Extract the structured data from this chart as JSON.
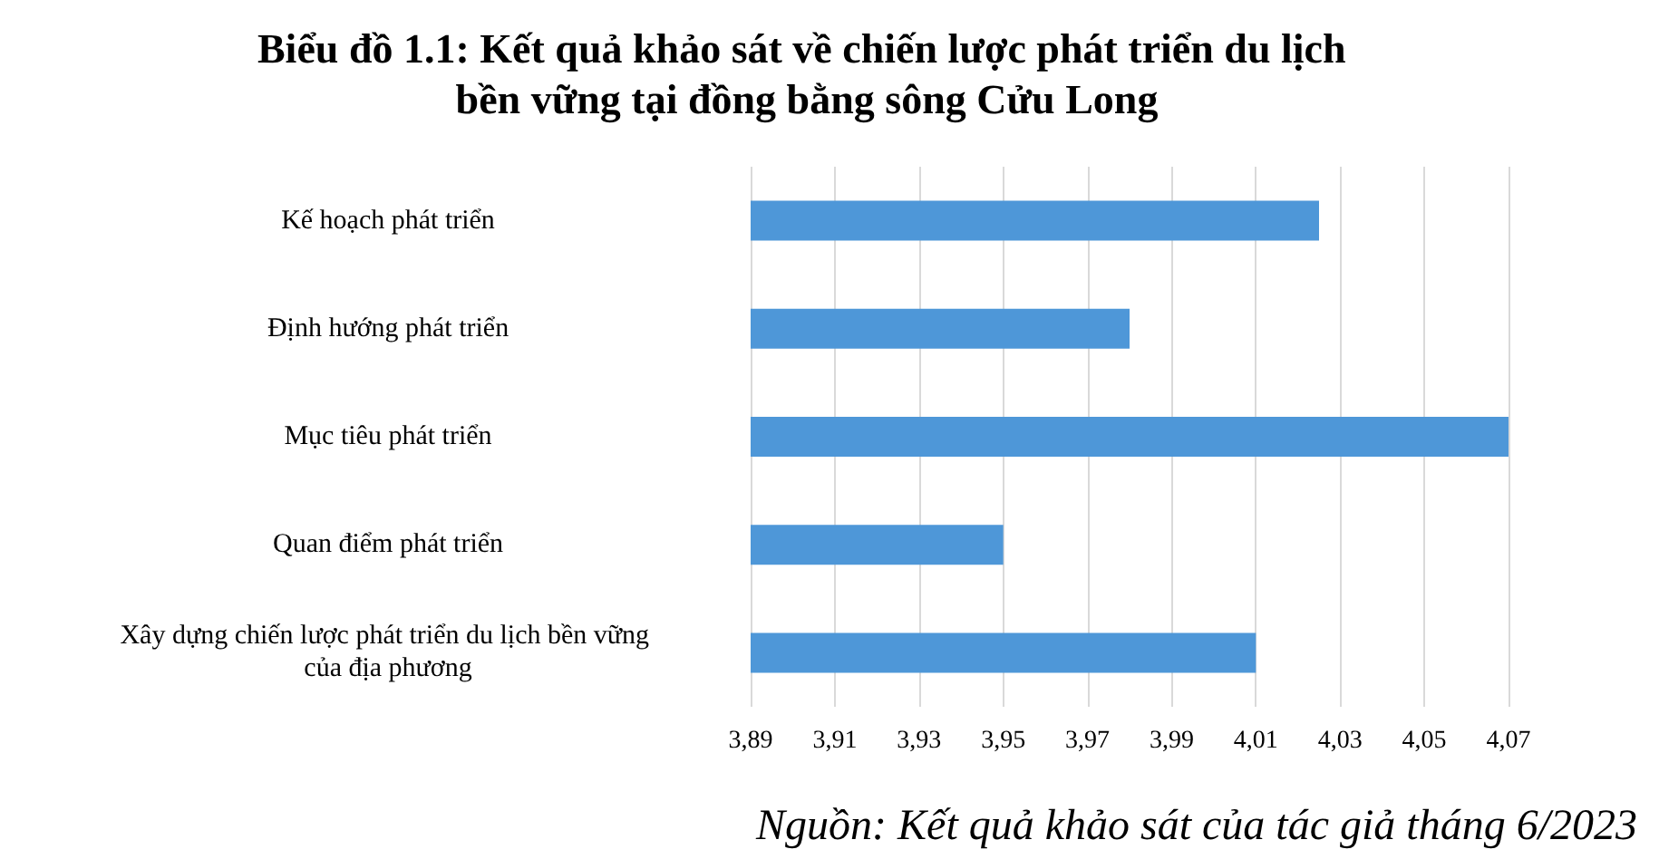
{
  "chart_data": {
    "type": "bar",
    "orientation": "horizontal",
    "title": "Biểu đồ 1.1: Kết quả khảo sát về chiến lược phát triển du lịch bền vững tại đồng bằng sông Cửu Long",
    "categories": [
      "Kế hoạch phát triển",
      "Định hướng phát triển",
      "Mục tiêu phát triển",
      "Quan điểm phát triển",
      "Xây dựng chiến lược phát triển du lịch bền vững của địa phương"
    ],
    "values": [
      4.025,
      3.98,
      4.07,
      3.95,
      4.01
    ],
    "color": "#4e97d8",
    "xlim": [
      3.89,
      4.07
    ],
    "xticks": [
      {
        "value": 3.89,
        "label": "3,89"
      },
      {
        "value": 3.91,
        "label": "3,91"
      },
      {
        "value": 3.93,
        "label": "3,93"
      },
      {
        "value": 3.95,
        "label": "3,95"
      },
      {
        "value": 3.97,
        "label": "3,97"
      },
      {
        "value": 3.99,
        "label": "3,99"
      },
      {
        "value": 4.01,
        "label": "4,01"
      },
      {
        "value": 4.03,
        "label": "4,03"
      },
      {
        "value": 4.05,
        "label": "4,05"
      },
      {
        "value": 4.07,
        "label": "4,07"
      }
    ],
    "grid": "x",
    "annotations": [
      "Nguồn: Kết quả khảo sát của tác giả tháng 6/2023"
    ]
  }
}
